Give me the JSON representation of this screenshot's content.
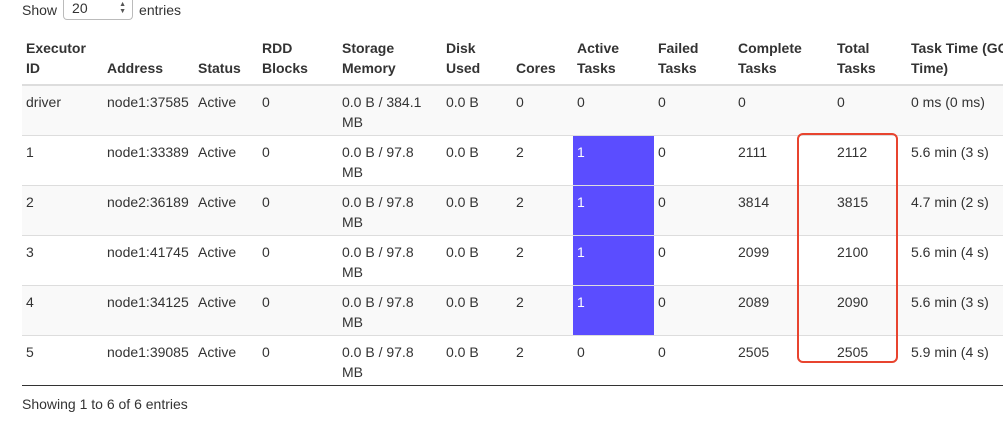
{
  "length_menu": {
    "prefix": "Show",
    "value": "20",
    "suffix": "entries"
  },
  "columns": [
    "Executor ID",
    "Address",
    "Status",
    "RDD Blocks",
    "Storage Memory",
    "Disk Used",
    "Cores",
    "Active Tasks",
    "Failed Tasks",
    "Complete Tasks",
    "Total Tasks",
    "Task Time (GC Time)"
  ],
  "rows": [
    {
      "id": "driver",
      "address": "node1:37585",
      "status": "Active",
      "rdd": "0",
      "storage": "0.0 B / 384.1 MB",
      "disk": "0.0 B",
      "cores": "0",
      "active": "0",
      "failed": "0",
      "complete": "0",
      "total": "0",
      "time": "0 ms (0 ms)"
    },
    {
      "id": "1",
      "address": "node1:33389",
      "status": "Active",
      "rdd": "0",
      "storage": "0.0 B / 97.8 MB",
      "disk": "0.0 B",
      "cores": "2",
      "active": "1",
      "failed": "0",
      "complete": "2111",
      "total": "2112",
      "time": "5.6 min (3 s)"
    },
    {
      "id": "2",
      "address": "node2:36189",
      "status": "Active",
      "rdd": "0",
      "storage": "0.0 B / 97.8 MB",
      "disk": "0.0 B",
      "cores": "2",
      "active": "1",
      "failed": "0",
      "complete": "3814",
      "total": "3815",
      "time": "4.7 min (2 s)"
    },
    {
      "id": "3",
      "address": "node1:41745",
      "status": "Active",
      "rdd": "0",
      "storage": "0.0 B / 97.8 MB",
      "disk": "0.0 B",
      "cores": "2",
      "active": "1",
      "failed": "0",
      "complete": "2099",
      "total": "2100",
      "time": "5.6 min (4 s)"
    },
    {
      "id": "4",
      "address": "node1:34125",
      "status": "Active",
      "rdd": "0",
      "storage": "0.0 B / 97.8 MB",
      "disk": "0.0 B",
      "cores": "2",
      "active": "1",
      "failed": "0",
      "complete": "2089",
      "total": "2090",
      "time": "5.6 min (3 s)"
    },
    {
      "id": "5",
      "address": "node1:39085",
      "status": "Active",
      "rdd": "0",
      "storage": "0.0 B / 97.8 MB",
      "disk": "0.0 B",
      "cores": "2",
      "active": "0",
      "failed": "0",
      "complete": "2505",
      "total": "2505",
      "time": "5.9 min (4 s)"
    }
  ],
  "info_text": "Showing 1 to 6 of 6 entries",
  "colors": {
    "active_highlight": "#5b4dff",
    "annotation_box": "#e8442f"
  }
}
